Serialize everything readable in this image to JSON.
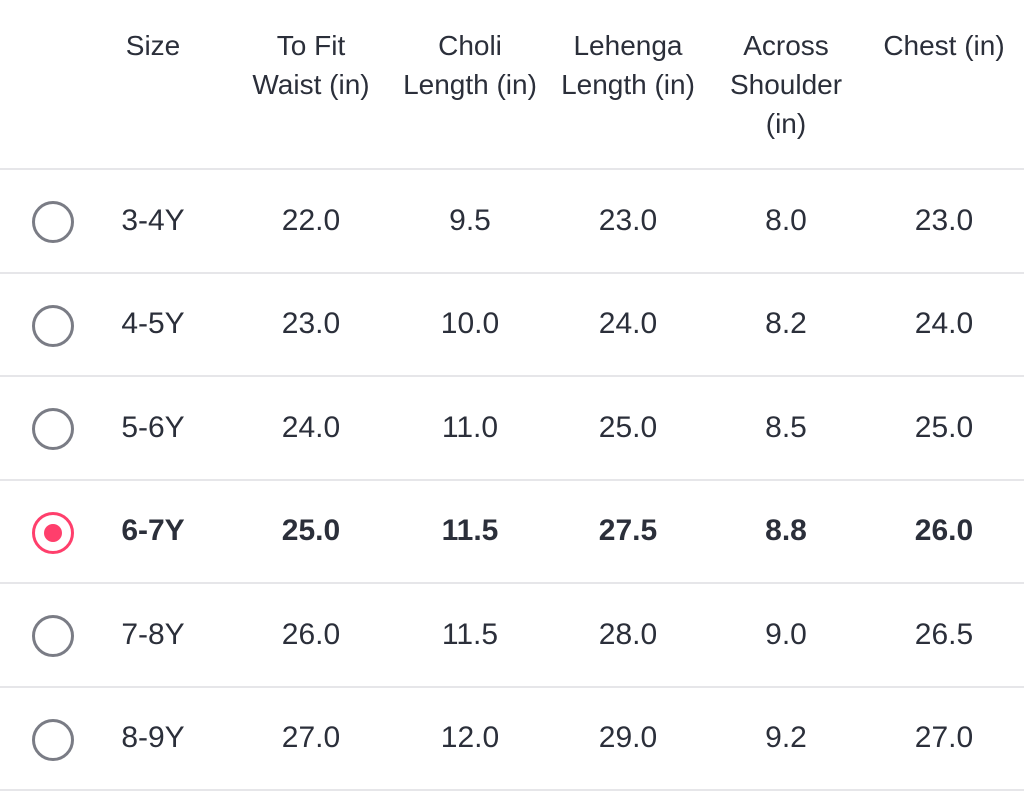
{
  "size_chart": {
    "headers": [
      "Size",
      "To Fit\nWaist (in)",
      "Choli\nLength (in)",
      "Lehenga\nLength (in)",
      "Across\nShoulder\n(in)",
      "Chest (in)"
    ],
    "selected_index": 3,
    "accent_color": "#ff3f6c",
    "radio_color": "#7a7c85",
    "rows": [
      {
        "size": "3-4Y",
        "waist": "22.0",
        "choli_length": "9.5",
        "lehenga_length": "23.0",
        "across_shoulder": "8.0",
        "chest": "23.0"
      },
      {
        "size": "4-5Y",
        "waist": "23.0",
        "choli_length": "10.0",
        "lehenga_length": "24.0",
        "across_shoulder": "8.2",
        "chest": "24.0"
      },
      {
        "size": "5-6Y",
        "waist": "24.0",
        "choli_length": "11.0",
        "lehenga_length": "25.0",
        "across_shoulder": "8.5",
        "chest": "25.0"
      },
      {
        "size": "6-7Y",
        "waist": "25.0",
        "choli_length": "11.5",
        "lehenga_length": "27.5",
        "across_shoulder": "8.8",
        "chest": "26.0"
      },
      {
        "size": "7-8Y",
        "waist": "26.0",
        "choli_length": "11.5",
        "lehenga_length": "28.0",
        "across_shoulder": "9.0",
        "chest": "26.5"
      },
      {
        "size": "8-9Y",
        "waist": "27.0",
        "choli_length": "12.0",
        "lehenga_length": "29.0",
        "across_shoulder": "9.2",
        "chest": "27.0"
      }
    ]
  }
}
